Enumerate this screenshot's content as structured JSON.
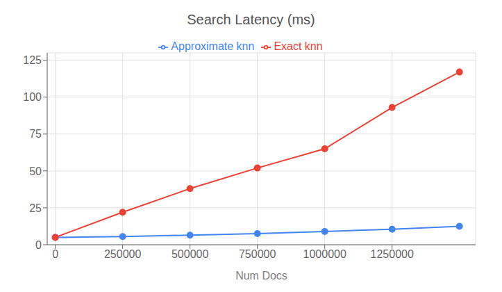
{
  "chart_data": {
    "type": "line",
    "title": "Search Latency (ms)",
    "xlabel": "Num Docs",
    "x": [
      0,
      250000,
      500000,
      750000,
      1000000,
      1250000,
      1500000
    ],
    "series": [
      {
        "name": "Approximate knn",
        "color": "#4285F4",
        "marker": "circle",
        "values": [
          5.0,
          5.5,
          6.5,
          7.5,
          9.0,
          10.5,
          12.5
        ]
      },
      {
        "name": "Exact knn",
        "color": "#EA4335",
        "marker": "circle",
        "values": [
          5.0,
          22.0,
          38.0,
          52.0,
          65.0,
          93.0,
          117.0
        ]
      }
    ],
    "xlim": [
      -30000,
      1560000
    ],
    "xticks": [
      0,
      250000,
      500000,
      750000,
      1000000,
      1250000
    ],
    "ylim": [
      0,
      130
    ],
    "yticks": [
      0,
      25,
      50,
      75,
      100,
      125
    ],
    "grid": true,
    "legend": "top"
  }
}
